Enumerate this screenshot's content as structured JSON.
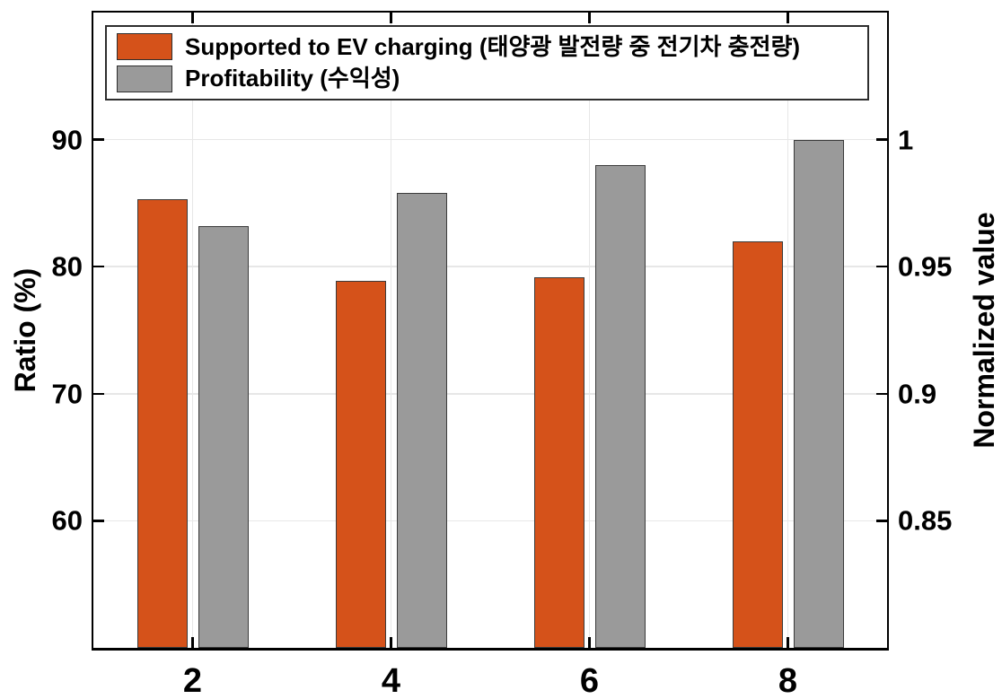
{
  "chart_data": {
    "type": "bar",
    "categories": [
      "2",
      "4",
      "6",
      "8"
    ],
    "x_values": [
      2,
      4,
      6,
      8
    ],
    "x_range": [
      1,
      9
    ],
    "series": [
      {
        "name": "Supported to EV charging (태양광 발전량 중 전기차 충전량)",
        "axis": "left",
        "color": "#d5521a",
        "values": [
          85.3,
          78.9,
          79.2,
          82.0
        ]
      },
      {
        "name": "Profitability (수익성)",
        "axis": "right",
        "color": "#9a9a9a",
        "values": [
          0.966,
          0.979,
          0.99,
          1.0
        ]
      }
    ],
    "left_axis": {
      "label": "Ratio (%)",
      "ylim": [
        50,
        100
      ],
      "tick_values": [
        60,
        70,
        80,
        90
      ],
      "tick_labels": [
        "60",
        "70",
        "80",
        "90"
      ]
    },
    "right_axis": {
      "label": "Normalized value",
      "ylim": [
        0.8,
        1.05
      ],
      "tick_values": [
        0.85,
        0.9,
        0.95,
        1
      ],
      "tick_labels": [
        "0.85",
        "0.9",
        "0.95",
        "1"
      ]
    },
    "grid": true,
    "legend_position": "top-left",
    "bar_edge_color": "#3b3b3b",
    "grid_color": "#e7e7e7"
  }
}
